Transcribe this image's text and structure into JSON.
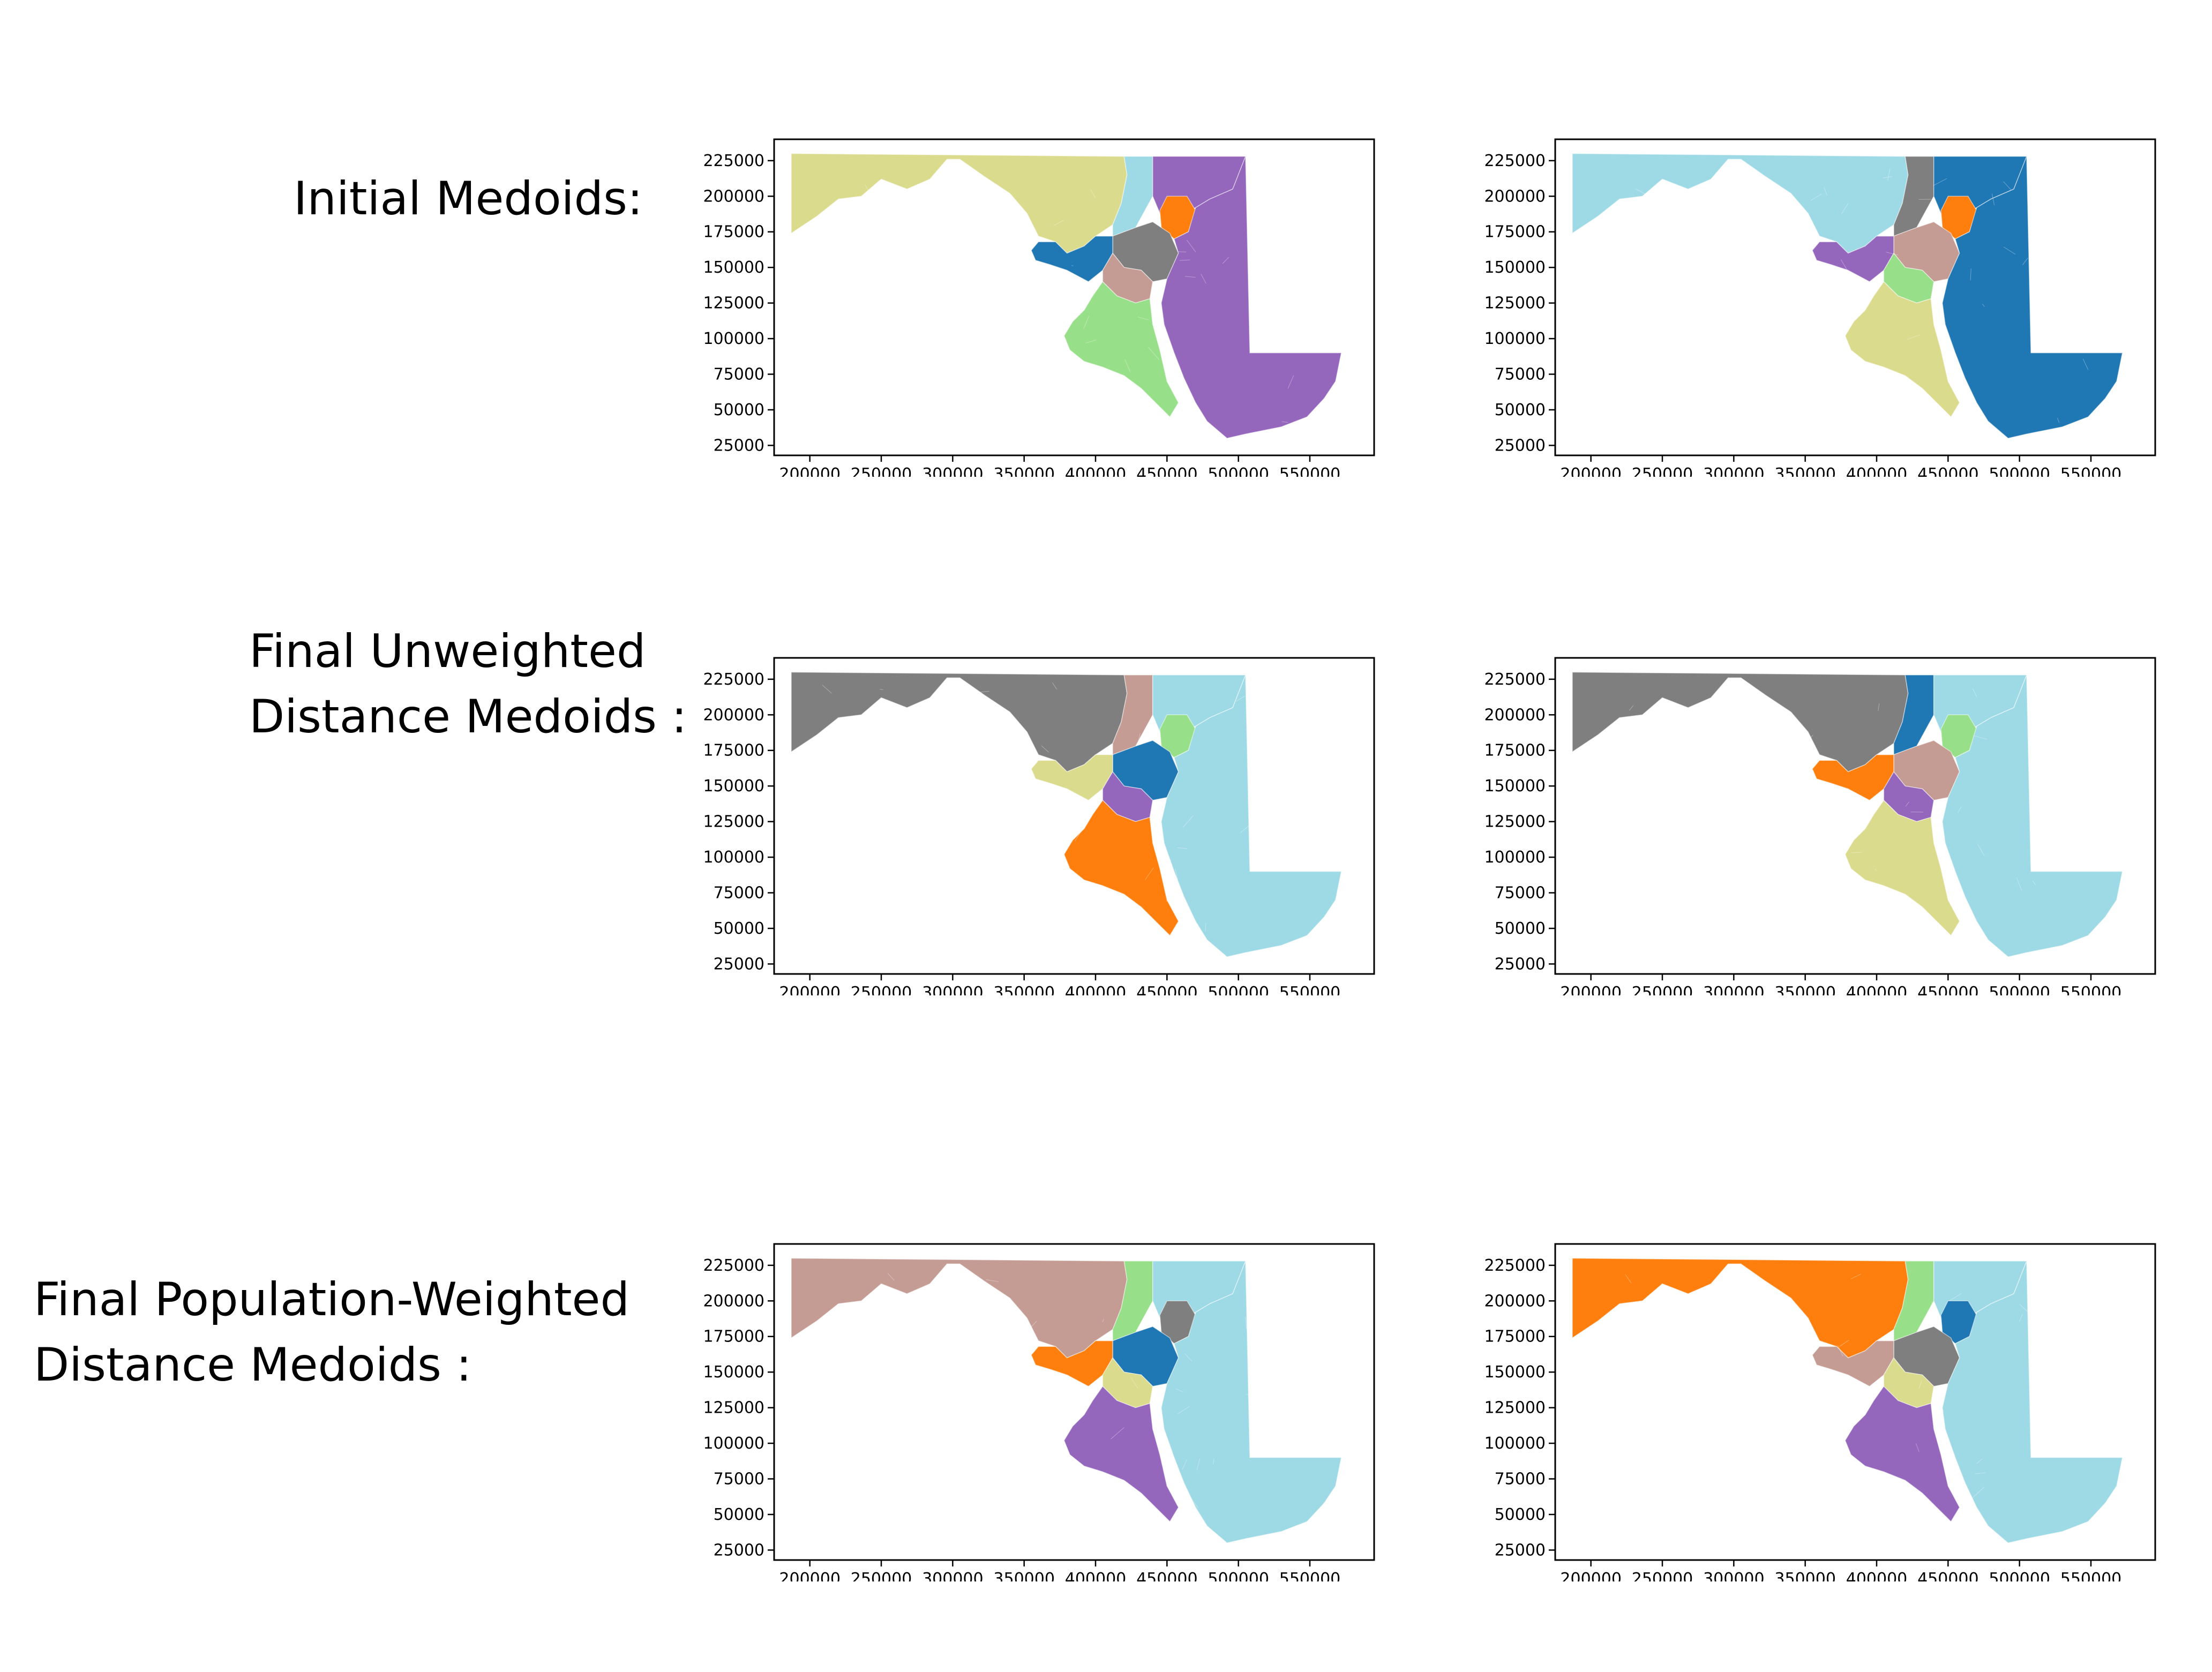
{
  "rows": [
    {
      "label_lines": [
        "Initial Medoids:"
      ]
    },
    {
      "label_lines": [
        "Final Unweighted",
        "Distance Medoids :"
      ]
    },
    {
      "label_lines": [
        "Final Population-Weighted",
        "Distance Medoids :"
      ]
    }
  ],
  "axes": {
    "x_ticks": [
      "200000",
      "250000",
      "300000",
      "350000",
      "400000",
      "450000",
      "500000",
      "550000"
    ],
    "y_ticks": [
      "225000",
      "200000",
      "175000",
      "150000",
      "125000",
      "100000",
      "75000",
      "50000",
      "25000"
    ],
    "x_values": [
      200000,
      250000,
      300000,
      350000,
      400000,
      450000,
      500000,
      550000
    ],
    "y_values": [
      225000,
      200000,
      175000,
      150000,
      125000,
      100000,
      75000,
      50000,
      25000
    ],
    "xlim": [
      175000,
      595000
    ],
    "ylim": [
      18000,
      240000
    ]
  },
  "palette": {
    "tab_blue": "#1f77b4",
    "orange": "#ff7f0e",
    "green": "#98df8a",
    "purple": "#9467bd",
    "tan": "#c49c94",
    "gray": "#7f7f7f",
    "olive": "#dbdb8d",
    "cyan": "#9edae5"
  },
  "maps": [
    {
      "name": "initial-medoids-left",
      "regions": {
        "west": "olive",
        "north_central": "cyan",
        "harford": "purple",
        "cecil": "orange",
        "baltimore": "gray",
        "montgomery": "tab_blue",
        "howard_ar": "tan",
        "southern": "green",
        "eastern": "purple"
      }
    },
    {
      "name": "initial-medoids-right",
      "regions": {
        "west": "cyan",
        "north_central": "gray",
        "harford": "tab_blue",
        "cecil": "orange",
        "baltimore": "tan",
        "montgomery": "purple",
        "howard_ar": "green",
        "southern": "olive",
        "eastern": "tab_blue"
      }
    },
    {
      "name": "final-unweighted-left",
      "regions": {
        "west": "gray",
        "north_central": "tan",
        "harford": "cyan",
        "cecil": "green",
        "baltimore": "tab_blue",
        "montgomery": "olive",
        "howard_ar": "purple",
        "southern": "orange",
        "eastern": "cyan"
      }
    },
    {
      "name": "final-unweighted-right",
      "regions": {
        "west": "gray",
        "north_central": "tab_blue",
        "harford": "cyan",
        "cecil": "green",
        "baltimore": "tan",
        "montgomery": "orange",
        "howard_ar": "purple",
        "southern": "olive",
        "eastern": "cyan"
      }
    },
    {
      "name": "final-weighted-left",
      "regions": {
        "west": "tan",
        "north_central": "green",
        "harford": "cyan",
        "cecil": "gray",
        "baltimore": "tab_blue",
        "montgomery": "orange",
        "howard_ar": "olive",
        "southern": "purple",
        "eastern": "cyan"
      }
    },
    {
      "name": "final-weighted-right",
      "regions": {
        "west": "orange",
        "north_central": "green",
        "harford": "cyan",
        "cecil": "tab_blue",
        "baltimore": "gray",
        "montgomery": "tan",
        "howard_ar": "olive",
        "southern": "purple",
        "eastern": "cyan"
      }
    }
  ]
}
